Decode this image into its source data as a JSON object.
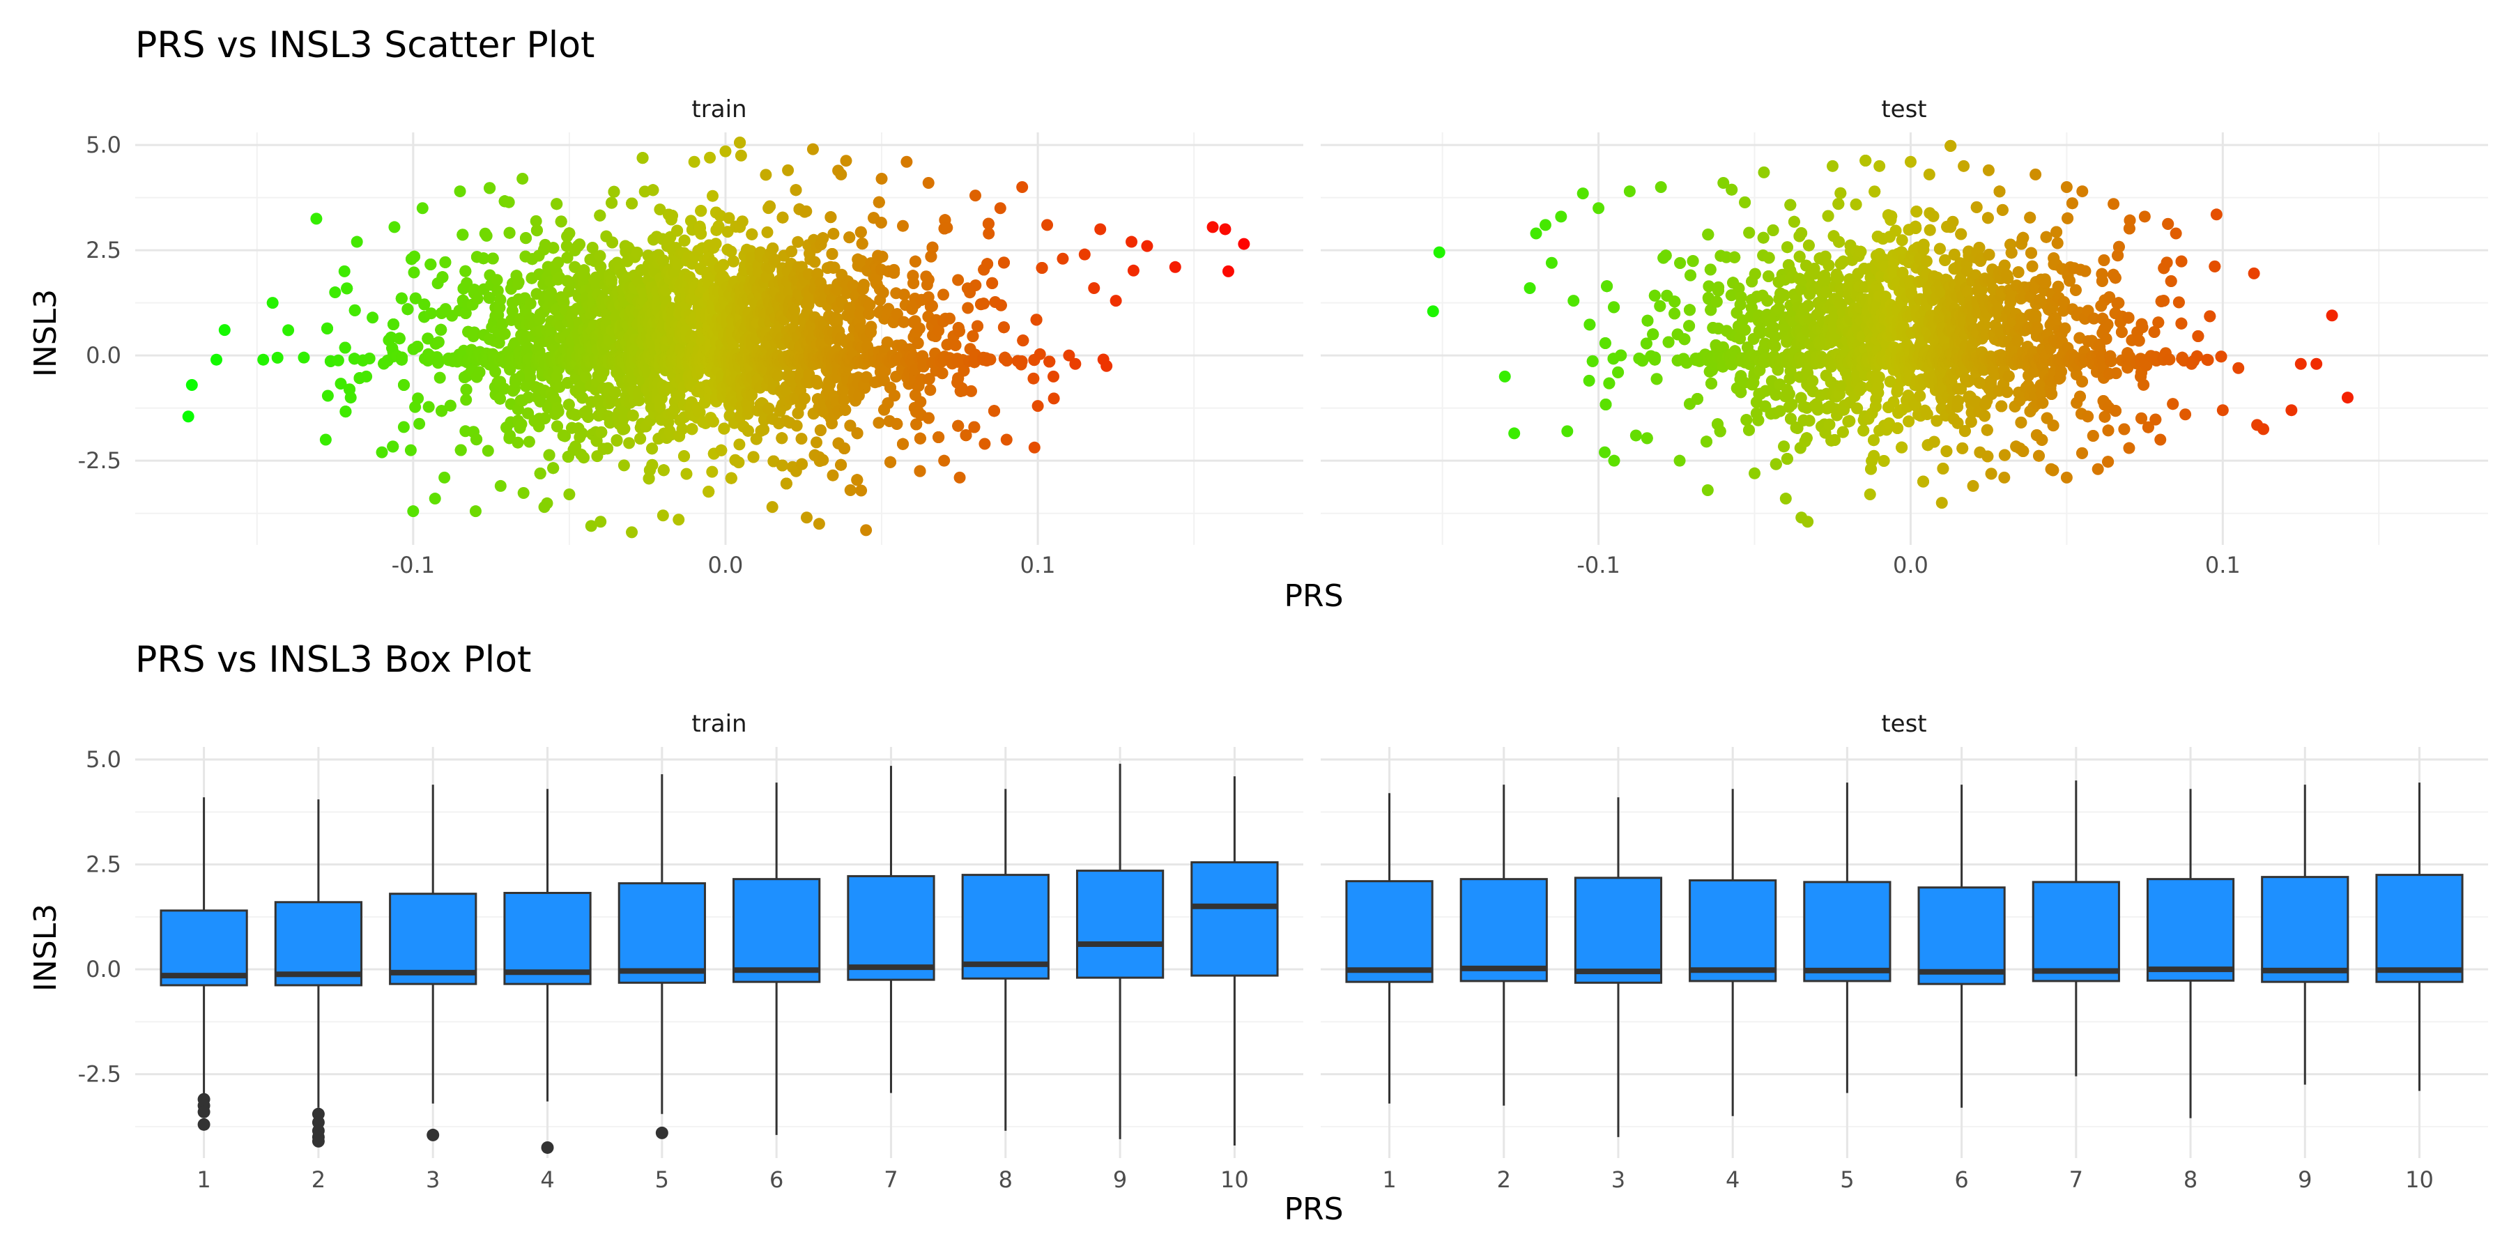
{
  "chart_data": [
    {
      "type": "scatter",
      "title": "PRS vs INSL3 Scatter Plot",
      "xlabel": "PRS",
      "ylabel": "INSL3",
      "xlim": [
        -0.189,
        0.185
      ],
      "ylim": [
        -4.5,
        5.3
      ],
      "grid": true,
      "legend": "none",
      "color_scale": {
        "low": "#00ff00",
        "mid": "#bfbf00",
        "high": "#ff0000",
        "domain": [
          -0.18,
          0.17
        ]
      },
      "x_ticks": [
        {
          "value": -0.1,
          "label": "-0.1"
        },
        {
          "value": 0.0,
          "label": "0.0"
        },
        {
          "value": 0.1,
          "label": "0.1"
        }
      ],
      "y_ticks": [
        {
          "value": 5.0,
          "label": "5.0"
        },
        {
          "value": 2.5,
          "label": "2.5"
        },
        {
          "value": 0.0,
          "label": "0.0"
        },
        {
          "value": -2.5,
          "label": "-2.5"
        }
      ],
      "panels": [
        {
          "name": "train",
          "cloud": {
            "x_mean": -0.01,
            "x_sd": 0.04,
            "y_mean": 0.4,
            "y_sd": 1.3,
            "n": 7000
          },
          "points": [
            {
              "x": -0.172,
              "y": -1.45
            },
            {
              "x": -0.163,
              "y": -0.1
            },
            {
              "x": -0.148,
              "y": -0.1
            },
            {
              "x": -0.145,
              "y": 1.25
            },
            {
              "x": -0.14,
              "y": 0.6
            },
            {
              "x": -0.135,
              "y": -0.05
            },
            {
              "x": -0.131,
              "y": 3.25
            },
            {
              "x": -0.128,
              "y": -2.0
            },
            {
              "x": -0.125,
              "y": 1.5
            },
            {
              "x": -0.122,
              "y": 2.0
            },
            {
              "x": -0.12,
              "y": -1.0
            },
            {
              "x": -0.118,
              "y": 2.7
            },
            {
              "x": -0.115,
              "y": -0.5
            },
            {
              "x": -0.113,
              "y": 0.9
            },
            {
              "x": -0.11,
              "y": -2.3
            },
            {
              "x": -0.106,
              "y": 3.05
            },
            {
              "x": -0.103,
              "y": -1.7
            },
            {
              "x": -0.1,
              "y": -3.7
            },
            {
              "x": -0.097,
              "y": 3.5
            },
            {
              "x": -0.093,
              "y": -3.4
            },
            {
              "x": -0.09,
              "y": -2.9
            },
            {
              "x": -0.085,
              "y": 3.9
            },
            {
              "x": -0.08,
              "y": -3.7
            },
            {
              "x": -0.072,
              "y": -3.1
            },
            {
              "x": -0.065,
              "y": 4.2
            },
            {
              "x": -0.058,
              "y": -3.6
            },
            {
              "x": -0.05,
              "y": -3.3
            },
            {
              "x": -0.043,
              "y": -4.05
            },
            {
              "x": -0.04,
              "y": -3.95
            },
            {
              "x": -0.03,
              "y": -4.2
            },
            {
              "x": -0.02,
              "y": -3.8
            },
            {
              "x": -0.015,
              "y": -3.9
            },
            {
              "x": -0.01,
              "y": 4.6
            },
            {
              "x": -0.005,
              "y": 4.7
            },
            {
              "x": 0.0,
              "y": 4.85
            },
            {
              "x": 0.005,
              "y": 4.75
            },
            {
              "x": 0.015,
              "y": -3.6
            },
            {
              "x": 0.02,
              "y": 4.4
            },
            {
              "x": 0.026,
              "y": -3.85
            },
            {
              "x": 0.03,
              "y": -4.0
            },
            {
              "x": 0.028,
              "y": 4.9
            },
            {
              "x": 0.04,
              "y": -3.2
            },
            {
              "x": 0.037,
              "y": 4.3
            },
            {
              "x": 0.045,
              "y": -4.15
            },
            {
              "x": 0.05,
              "y": 4.2
            },
            {
              "x": 0.058,
              "y": 4.6
            },
            {
              "x": 0.065,
              "y": 4.1
            },
            {
              "x": 0.07,
              "y": -2.5
            },
            {
              "x": 0.075,
              "y": -2.9
            },
            {
              "x": 0.08,
              "y": 3.8
            },
            {
              "x": 0.083,
              "y": -2.1
            },
            {
              "x": 0.088,
              "y": 3.5
            },
            {
              "x": 0.09,
              "y": -2.0
            },
            {
              "x": 0.095,
              "y": 4.0
            },
            {
              "x": 0.1,
              "y": -1.2
            },
            {
              "x": 0.103,
              "y": 3.1
            },
            {
              "x": 0.105,
              "y": -0.5
            },
            {
              "x": 0.108,
              "y": 2.3
            },
            {
              "x": 0.11,
              "y": 0.0
            },
            {
              "x": 0.112,
              "y": -0.2
            },
            {
              "x": 0.115,
              "y": 2.4
            },
            {
              "x": 0.118,
              "y": 1.6
            },
            {
              "x": 0.12,
              "y": 3.0
            },
            {
              "x": 0.122,
              "y": -0.25
            },
            {
              "x": 0.125,
              "y": 1.3
            },
            {
              "x": 0.13,
              "y": 2.7
            },
            {
              "x": 0.135,
              "y": 2.6
            },
            {
              "x": 0.144,
              "y": 2.1
            },
            {
              "x": 0.156,
              "y": 3.05
            },
            {
              "x": 0.16,
              "y": 3.0
            },
            {
              "x": 0.161,
              "y": 2.0
            },
            {
              "x": 0.166,
              "y": 2.65
            }
          ]
        },
        {
          "name": "test",
          "cloud": {
            "x_mean": 0.0,
            "x_sd": 0.035,
            "y_mean": 0.5,
            "y_sd": 1.25,
            "n": 4500
          },
          "points": [
            {
              "x": -0.151,
              "y": 2.45
            },
            {
              "x": -0.153,
              "y": 1.05
            },
            {
              "x": -0.13,
              "y": -0.5
            },
            {
              "x": -0.127,
              "y": -1.85
            },
            {
              "x": -0.122,
              "y": 1.6
            },
            {
              "x": -0.12,
              "y": 2.9
            },
            {
              "x": -0.117,
              "y": 3.1
            },
            {
              "x": -0.115,
              "y": 2.2
            },
            {
              "x": -0.112,
              "y": 3.3
            },
            {
              "x": -0.11,
              "y": -1.8
            },
            {
              "x": -0.108,
              "y": 1.3
            },
            {
              "x": -0.105,
              "y": 3.85
            },
            {
              "x": -0.103,
              "y": -0.6
            },
            {
              "x": -0.1,
              "y": 3.5
            },
            {
              "x": -0.098,
              "y": -2.3
            },
            {
              "x": -0.095,
              "y": -2.5
            },
            {
              "x": -0.09,
              "y": 3.9
            },
            {
              "x": -0.088,
              "y": -1.9
            },
            {
              "x": -0.08,
              "y": 4.0
            },
            {
              "x": -0.074,
              "y": -2.5
            },
            {
              "x": -0.065,
              "y": -3.2
            },
            {
              "x": -0.06,
              "y": 4.1
            },
            {
              "x": -0.05,
              "y": -2.8
            },
            {
              "x": -0.047,
              "y": 4.35
            },
            {
              "x": -0.04,
              "y": -3.4
            },
            {
              "x": -0.035,
              "y": -3.85
            },
            {
              "x": -0.033,
              "y": -3.95
            },
            {
              "x": -0.025,
              "y": 4.5
            },
            {
              "x": -0.013,
              "y": -3.3
            },
            {
              "x": -0.01,
              "y": 4.5
            },
            {
              "x": 0.0,
              "y": 4.6
            },
            {
              "x": 0.006,
              "y": 4.3
            },
            {
              "x": 0.01,
              "y": -3.5
            },
            {
              "x": 0.017,
              "y": 4.5
            },
            {
              "x": 0.02,
              "y": -3.1
            },
            {
              "x": 0.025,
              "y": 4.4
            },
            {
              "x": 0.03,
              "y": -2.9
            },
            {
              "x": 0.04,
              "y": 4.3
            },
            {
              "x": 0.045,
              "y": -2.7
            },
            {
              "x": 0.05,
              "y": 4.0
            },
            {
              "x": 0.05,
              "y": -2.9
            },
            {
              "x": 0.055,
              "y": 3.9
            },
            {
              "x": 0.06,
              "y": -2.7
            },
            {
              "x": 0.065,
              "y": 3.6
            },
            {
              "x": 0.07,
              "y": -2.2
            },
            {
              "x": 0.075,
              "y": 3.3
            },
            {
              "x": 0.08,
              "y": -2.0
            },
            {
              "x": 0.085,
              "y": 2.9
            },
            {
              "x": 0.088,
              "y": -1.4
            },
            {
              "x": 0.09,
              "y": -0.2
            },
            {
              "x": 0.095,
              "y": -0.1
            },
            {
              "x": 0.098,
              "y": 3.35
            },
            {
              "x": 0.1,
              "y": -1.3
            },
            {
              "x": 0.105,
              "y": -0.3
            },
            {
              "x": 0.11,
              "y": 1.95
            },
            {
              "x": 0.111,
              "y": -1.65
            },
            {
              "x": 0.113,
              "y": -1.75
            },
            {
              "x": 0.122,
              "y": -1.3
            },
            {
              "x": 0.125,
              "y": -0.2
            },
            {
              "x": 0.13,
              "y": -0.2
            },
            {
              "x": 0.135,
              "y": 0.95
            },
            {
              "x": 0.14,
              "y": -1.0
            }
          ]
        }
      ]
    },
    {
      "type": "box",
      "title": "PRS vs INSL3 Box Plot",
      "xlabel": "PRS",
      "ylabel": "INSL3",
      "ylim": [
        -4.5,
        5.3
      ],
      "grid": true,
      "legend": "none",
      "fill_color": "#1e90ff",
      "categories": [
        "1",
        "2",
        "3",
        "4",
        "5",
        "6",
        "7",
        "8",
        "9",
        "10"
      ],
      "y_ticks": [
        {
          "value": 5.0,
          "label": "5.0"
        },
        {
          "value": 2.5,
          "label": "2.5"
        },
        {
          "value": 0.0,
          "label": "0.0"
        },
        {
          "value": -2.5,
          "label": "-2.5"
        }
      ],
      "panels": [
        {
          "name": "train",
          "boxes": [
            {
              "category": "1",
              "q1": -0.38,
              "median": -0.15,
              "q3": 1.4,
              "whisker_low": -3.0,
              "whisker_high": 4.1,
              "outliers": [
                -3.1,
                -3.25,
                -3.4,
                -3.7
              ]
            },
            {
              "category": "2",
              "q1": -0.38,
              "median": -0.12,
              "q3": 1.6,
              "whisker_low": -3.3,
              "whisker_high": 4.05,
              "outliers": [
                -3.45,
                -3.65,
                -3.85,
                -4.0,
                -4.1
              ]
            },
            {
              "category": "3",
              "q1": -0.35,
              "median": -0.08,
              "q3": 1.8,
              "whisker_low": -3.2,
              "whisker_high": 4.4,
              "outliers": [
                -3.95
              ]
            },
            {
              "category": "4",
              "q1": -0.35,
              "median": -0.07,
              "q3": 1.82,
              "whisker_low": -3.15,
              "whisker_high": 4.3,
              "outliers": [
                -4.25
              ]
            },
            {
              "category": "5",
              "q1": -0.32,
              "median": -0.04,
              "q3": 2.05,
              "whisker_low": -3.45,
              "whisker_high": 4.65,
              "outliers": [
                -3.9
              ]
            },
            {
              "category": "6",
              "q1": -0.3,
              "median": -0.02,
              "q3": 2.15,
              "whisker_low": -3.95,
              "whisker_high": 4.45,
              "outliers": []
            },
            {
              "category": "7",
              "q1": -0.25,
              "median": 0.05,
              "q3": 2.22,
              "whisker_low": -2.95,
              "whisker_high": 4.85,
              "outliers": []
            },
            {
              "category": "8",
              "q1": -0.22,
              "median": 0.12,
              "q3": 2.25,
              "whisker_low": -3.85,
              "whisker_high": 4.3,
              "outliers": []
            },
            {
              "category": "9",
              "q1": -0.2,
              "median": 0.6,
              "q3": 2.35,
              "whisker_low": -4.05,
              "whisker_high": 4.9,
              "outliers": []
            },
            {
              "category": "10",
              "q1": -0.15,
              "median": 1.5,
              "q3": 2.55,
              "whisker_low": -4.2,
              "whisker_high": 4.6,
              "outliers": []
            }
          ]
        },
        {
          "name": "test",
          "boxes": [
            {
              "category": "1",
              "q1": -0.3,
              "median": -0.02,
              "q3": 2.1,
              "whisker_low": -3.2,
              "whisker_high": 4.2,
              "outliers": []
            },
            {
              "category": "2",
              "q1": -0.28,
              "median": 0.02,
              "q3": 2.15,
              "whisker_low": -3.25,
              "whisker_high": 4.4,
              "outliers": []
            },
            {
              "category": "3",
              "q1": -0.32,
              "median": -0.05,
              "q3": 2.18,
              "whisker_low": -4.0,
              "whisker_high": 4.1,
              "outliers": []
            },
            {
              "category": "4",
              "q1": -0.28,
              "median": -0.02,
              "q3": 2.12,
              "whisker_low": -3.5,
              "whisker_high": 4.3,
              "outliers": []
            },
            {
              "category": "5",
              "q1": -0.28,
              "median": -0.03,
              "q3": 2.08,
              "whisker_low": -2.95,
              "whisker_high": 4.45,
              "outliers": []
            },
            {
              "category": "6",
              "q1": -0.35,
              "median": -0.06,
              "q3": 1.95,
              "whisker_low": -3.3,
              "whisker_high": 4.4,
              "outliers": []
            },
            {
              "category": "7",
              "q1": -0.28,
              "median": -0.04,
              "q3": 2.08,
              "whisker_low": -2.55,
              "whisker_high": 4.5,
              "outliers": []
            },
            {
              "category": "8",
              "q1": -0.27,
              "median": 0.0,
              "q3": 2.15,
              "whisker_low": -3.55,
              "whisker_high": 4.3,
              "outliers": []
            },
            {
              "category": "9",
              "q1": -0.3,
              "median": -0.03,
              "q3": 2.2,
              "whisker_low": -2.75,
              "whisker_high": 4.4,
              "outliers": []
            },
            {
              "category": "10",
              "q1": -0.3,
              "median": -0.02,
              "q3": 2.25,
              "whisker_low": -2.9,
              "whisker_high": 4.45,
              "outliers": []
            }
          ]
        }
      ]
    }
  ]
}
